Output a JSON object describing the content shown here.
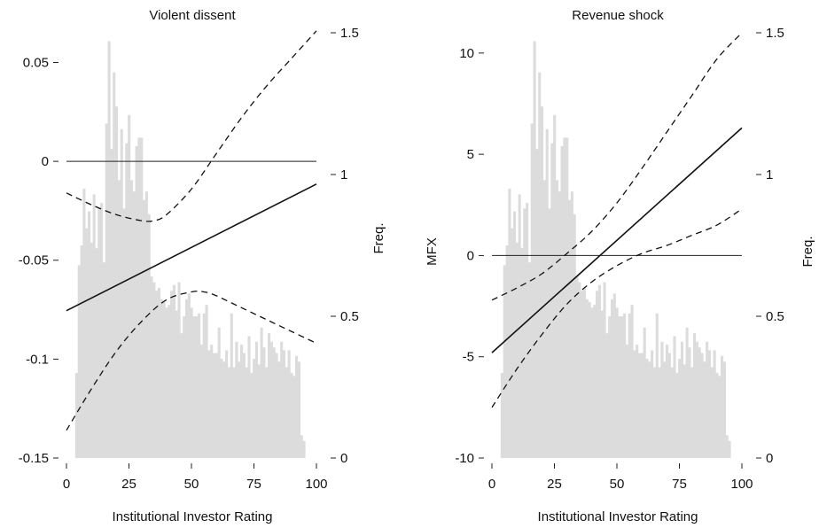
{
  "chart_data": [
    {
      "type": "line",
      "title": "Violent dissent",
      "xlabel": "Institutional Investor Rating",
      "ylabel": "",
      "y2label": "Freq.",
      "xlim": [
        0,
        100
      ],
      "ylim": [
        -0.15,
        0.065
      ],
      "y2lim": [
        0,
        1.5
      ],
      "xticks": [
        "0",
        "25",
        "50",
        "75",
        "100"
      ],
      "yticks": [
        "-0.15",
        "-0.1",
        "-0.05",
        "0",
        "0.05"
      ],
      "y2ticks": [
        "0",
        "0.5",
        "1",
        "1.5"
      ],
      "reference_line": 0,
      "series": [
        {
          "role": "marginal-effect",
          "style": "solid",
          "x": [
            0,
            100
          ],
          "y": [
            -0.0755,
            -0.0115
          ]
        },
        {
          "role": "upper-ci",
          "style": "dashed",
          "x": [
            0,
            10,
            20,
            30,
            35,
            40,
            50,
            60,
            70,
            80,
            90,
            100
          ],
          "y": [
            -0.016,
            -0.022,
            -0.027,
            -0.03,
            -0.03,
            -0.027,
            -0.014,
            0.004,
            0.022,
            0.038,
            0.052,
            0.066
          ]
        },
        {
          "role": "lower-ci",
          "style": "dashed",
          "x": [
            0,
            10,
            20,
            30,
            40,
            50,
            55,
            60,
            70,
            80,
            90,
            100
          ],
          "y": [
            -0.136,
            -0.115,
            -0.096,
            -0.081,
            -0.07,
            -0.066,
            -0.066,
            -0.068,
            -0.074,
            -0.08,
            -0.086,
            -0.092
          ]
        }
      ],
      "histogram": {
        "x_start": 3.5,
        "bin_width": 1,
        "color": "#dcdcdc",
        "values": [
          0.3,
          0.68,
          0.75,
          0.95,
          0.81,
          0.87,
          0.76,
          0.93,
          0.74,
          0.88,
          0.9,
          0.69,
          1.18,
          1.47,
          1.09,
          1.36,
          1.24,
          0.98,
          1.16,
          0.88,
          1.11,
          1.21,
          0.98,
          0.94,
          1.1,
          1.13,
          1.13,
          0.91,
          0.94,
          0.86,
          0.64,
          0.62,
          0.59,
          0.6,
          0.56,
          0.55,
          0.53,
          0.54,
          0.59,
          0.61,
          0.52,
          0.62,
          0.44,
          0.5,
          0.56,
          0.58,
          0.53,
          0.5,
          0.5,
          0.51,
          0.4,
          0.51,
          0.54,
          0.38,
          0.4,
          0.37,
          0.37,
          0.46,
          0.35,
          0.34,
          0.38,
          0.32,
          0.51,
          0.32,
          0.41,
          0.34,
          0.4,
          0.37,
          0.32,
          0.43,
          0.3,
          0.35,
          0.41,
          0.33,
          0.46,
          0.39,
          0.32,
          0.44,
          0.41,
          0.39,
          0.37,
          0.34,
          0.41,
          0.38,
          0.32,
          0.38,
          0.3,
          0.29,
          0.36,
          0.34,
          0.08,
          0.06
        ]
      }
    },
    {
      "type": "line",
      "title": "Revenue shock",
      "xlabel": "Institutional Investor Rating",
      "ylabel": "MFX",
      "y2label": "Freq.",
      "xlim": [
        0,
        100
      ],
      "ylim": [
        -10,
        11
      ],
      "y2lim": [
        0,
        1.5
      ],
      "xticks": [
        "0",
        "25",
        "50",
        "75",
        "100"
      ],
      "yticks": [
        "-10",
        "-5",
        "0",
        "5",
        "10"
      ],
      "y2ticks": [
        "0",
        "0.5",
        "1",
        "1.5"
      ],
      "reference_line": 0,
      "series": [
        {
          "role": "marginal-effect",
          "style": "solid",
          "x": [
            0,
            100
          ],
          "y": [
            -4.8,
            6.3
          ]
        },
        {
          "role": "upper-ci",
          "style": "dashed",
          "x": [
            0,
            10,
            20,
            30,
            40,
            50,
            60,
            70,
            80,
            90,
            100
          ],
          "y": [
            -2.2,
            -1.6,
            -0.9,
            0.1,
            1.2,
            2.6,
            4.3,
            6.1,
            7.9,
            9.7,
            11.0
          ]
        },
        {
          "role": "lower-ci",
          "style": "dashed",
          "x": [
            0,
            10,
            20,
            30,
            40,
            50,
            60,
            70,
            80,
            90,
            100
          ],
          "y": [
            -7.5,
            -5.6,
            -3.9,
            -2.4,
            -1.3,
            -0.5,
            0.1,
            0.5,
            1.0,
            1.5,
            2.3
          ]
        }
      ],
      "histogram": {
        "x_start": 3.5,
        "bin_width": 1,
        "color": "#dcdcdc",
        "values": [
          0.3,
          0.68,
          0.75,
          0.95,
          0.81,
          0.87,
          0.76,
          0.93,
          0.74,
          0.88,
          0.9,
          0.69,
          1.18,
          1.47,
          1.09,
          1.36,
          1.24,
          0.98,
          1.16,
          0.88,
          1.11,
          1.21,
          0.98,
          0.94,
          1.1,
          1.13,
          1.13,
          0.91,
          0.94,
          0.86,
          0.64,
          0.62,
          0.59,
          0.6,
          0.56,
          0.55,
          0.53,
          0.54,
          0.59,
          0.61,
          0.52,
          0.62,
          0.44,
          0.5,
          0.56,
          0.58,
          0.53,
          0.5,
          0.5,
          0.51,
          0.4,
          0.51,
          0.54,
          0.38,
          0.4,
          0.37,
          0.37,
          0.46,
          0.35,
          0.34,
          0.38,
          0.32,
          0.51,
          0.32,
          0.41,
          0.34,
          0.4,
          0.37,
          0.32,
          0.43,
          0.3,
          0.35,
          0.41,
          0.33,
          0.46,
          0.39,
          0.32,
          0.44,
          0.41,
          0.39,
          0.37,
          0.34,
          0.41,
          0.38,
          0.32,
          0.38,
          0.3,
          0.29,
          0.36,
          0.34,
          0.08,
          0.06
        ]
      }
    }
  ]
}
